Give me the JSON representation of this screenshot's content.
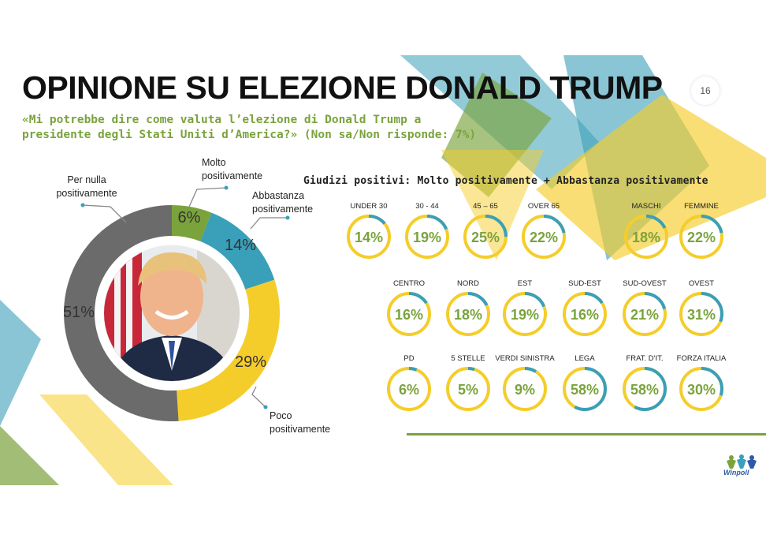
{
  "title": "OPINIONE SU ELEZIONE DONALD TRUMP",
  "page_number": "16",
  "question_line1": "«Mi potrebbe dire come valuta l’elezione di Donald Trump a",
  "question_line2": "presidente degli Stati Uniti d’America?» (Non sa/Non risponde: 7%)",
  "subtitle": "Giudizi positivi: Molto positivamente + Abbastanza positivamente",
  "colors": {
    "green": "#7aa33c",
    "teal": "#3a9fb8",
    "yellow": "#f5cd2a",
    "grey": "#6b6b6b",
    "value_green": "#7aa33c"
  },
  "chart_data": [
    {
      "type": "pie",
      "donut": true,
      "slices": [
        {
          "label_line1": "Molto",
          "label_line2": "positivamente",
          "value": 6,
          "value_label": "6%",
          "color": "#7aa33c"
        },
        {
          "label_line1": "Abbastanza",
          "label_line2": "positivamente",
          "value": 14,
          "value_label": "14%",
          "color": "#3a9fb8"
        },
        {
          "label_line1": "Poco",
          "label_line2": "positivamente",
          "value": 29,
          "value_label": "29%",
          "color": "#f5cd2a"
        },
        {
          "label_line1": "Per nulla",
          "label_line2": "positivamente",
          "value": 51,
          "value_label": "51%",
          "color": "#6b6b6b"
        }
      ],
      "center_image": "portrait-photo"
    },
    {
      "type": "gauge-grid",
      "title": "Giudizi positivi: Molto positivamente + Abbastanza positivamente",
      "rows": [
        [
          {
            "category": "UNDER 30",
            "value": 14,
            "value_label": "14%"
          },
          {
            "category": "30 - 44",
            "value": 19,
            "value_label": "19%"
          },
          {
            "category": "45 – 65",
            "value": 25,
            "value_label": "25%"
          },
          {
            "category": "OVER 65",
            "value": 22,
            "value_label": "22%"
          },
          {
            "category": "MASCHI",
            "value": 18,
            "value_label": "18%"
          },
          {
            "category": "FEMMINE",
            "value": 22,
            "value_label": "22%"
          }
        ],
        [
          {
            "category": "CENTRO",
            "value": 16,
            "value_label": "16%"
          },
          {
            "category": "NORD",
            "value": 18,
            "value_label": "18%"
          },
          {
            "category": "EST",
            "value": 19,
            "value_label": "19%"
          },
          {
            "category": "SUD-EST",
            "value": 16,
            "value_label": "16%"
          },
          {
            "category": "SUD-OVEST",
            "value": 21,
            "value_label": "21%"
          },
          {
            "category": "OVEST",
            "value": 31,
            "value_label": "31%"
          }
        ],
        [
          {
            "category": "PD",
            "value": 6,
            "value_label": "6%"
          },
          {
            "category": "5 STELLE",
            "value": 5,
            "value_label": "5%"
          },
          {
            "category": "VERDI SINISTRA",
            "value": 9,
            "value_label": "9%"
          },
          {
            "category": "LEGA",
            "value": 58,
            "value_label": "58%"
          },
          {
            "category": "FRAT. D'IT.",
            "value": 58,
            "value_label": "58%"
          },
          {
            "category": "FORZA ITALIA",
            "value": 30,
            "value_label": "30%"
          }
        ]
      ]
    }
  ],
  "logo_text": "Winpoll"
}
